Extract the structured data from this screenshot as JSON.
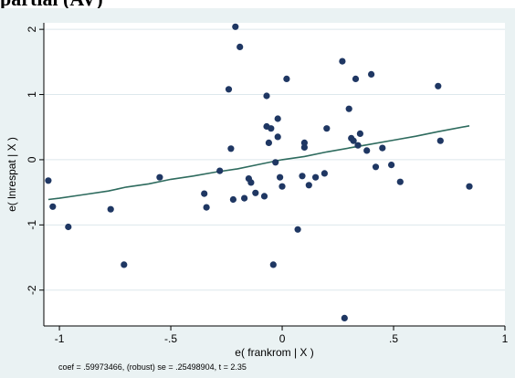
{
  "page": {
    "header_fragment": "partial (AV)"
  },
  "chart_data": {
    "type": "scatter",
    "title": "",
    "xlabel": "e( frankrom | X )",
    "ylabel": "e( lnrespat | X )",
    "xlim": [
      -1.07,
      1.0
    ],
    "ylim": [
      -2.55,
      2.1
    ],
    "xticks": [
      {
        "value": -1,
        "label": "-1"
      },
      {
        "value": -0.5,
        "label": "-.5"
      },
      {
        "value": 0,
        "label": "0"
      },
      {
        "value": 0.5,
        "label": ".5"
      },
      {
        "value": 1,
        "label": "1"
      }
    ],
    "yticks": [
      {
        "value": -2,
        "label": "-2"
      },
      {
        "value": -1,
        "label": "-1"
      },
      {
        "value": 0,
        "label": "0"
      },
      {
        "value": 1,
        "label": "1"
      },
      {
        "value": 2,
        "label": "2"
      }
    ],
    "grid": true,
    "note": "coef = .59973466, (robust) se = .25498904, t = 2.35",
    "colors": {
      "points": "#1f3763",
      "line": "#2e6b5e",
      "plot_bg": "#ffffff",
      "outer_bg": "#eaf2f3",
      "grid": "#dde8ec"
    },
    "points": [
      {
        "x": -1.05,
        "y": -0.32
      },
      {
        "x": -1.03,
        "y": -0.72
      },
      {
        "x": -0.96,
        "y": -1.03
      },
      {
        "x": -0.77,
        "y": -0.76
      },
      {
        "x": -0.71,
        "y": -1.61
      },
      {
        "x": -0.55,
        "y": -0.27
      },
      {
        "x": -0.35,
        "y": -0.52
      },
      {
        "x": -0.34,
        "y": -0.73
      },
      {
        "x": -0.28,
        "y": -0.17
      },
      {
        "x": -0.24,
        "y": 1.08
      },
      {
        "x": -0.23,
        "y": 0.17
      },
      {
        "x": -0.22,
        "y": -0.61
      },
      {
        "x": -0.21,
        "y": 2.04
      },
      {
        "x": -0.19,
        "y": 1.73
      },
      {
        "x": -0.17,
        "y": -0.59
      },
      {
        "x": -0.15,
        "y": -0.29
      },
      {
        "x": -0.14,
        "y": -0.35
      },
      {
        "x": -0.12,
        "y": -0.51
      },
      {
        "x": -0.08,
        "y": -0.56
      },
      {
        "x": -0.07,
        "y": 0.98
      },
      {
        "x": -0.07,
        "y": 0.51
      },
      {
        "x": -0.06,
        "y": 0.26
      },
      {
        "x": -0.05,
        "y": 0.48
      },
      {
        "x": -0.04,
        "y": -1.61
      },
      {
        "x": -0.03,
        "y": -0.04
      },
      {
        "x": -0.02,
        "y": 0.63
      },
      {
        "x": -0.02,
        "y": 0.35
      },
      {
        "x": -0.01,
        "y": -0.27
      },
      {
        "x": 0.0,
        "y": -0.41
      },
      {
        "x": 0.02,
        "y": 1.24
      },
      {
        "x": 0.07,
        "y": -1.07
      },
      {
        "x": 0.09,
        "y": -0.25
      },
      {
        "x": 0.1,
        "y": 0.19
      },
      {
        "x": 0.1,
        "y": 0.26
      },
      {
        "x": 0.12,
        "y": -0.39
      },
      {
        "x": 0.15,
        "y": -0.27
      },
      {
        "x": 0.19,
        "y": -0.21
      },
      {
        "x": 0.2,
        "y": 0.48
      },
      {
        "x": 0.27,
        "y": 1.51
      },
      {
        "x": 0.28,
        "y": -2.43
      },
      {
        "x": 0.3,
        "y": 0.78
      },
      {
        "x": 0.31,
        "y": 0.33
      },
      {
        "x": 0.32,
        "y": 0.29
      },
      {
        "x": 0.33,
        "y": 1.24
      },
      {
        "x": 0.34,
        "y": 0.22
      },
      {
        "x": 0.35,
        "y": 0.4
      },
      {
        "x": 0.38,
        "y": 0.14
      },
      {
        "x": 0.4,
        "y": 1.31
      },
      {
        "x": 0.42,
        "y": -0.11
      },
      {
        "x": 0.45,
        "y": 0.18
      },
      {
        "x": 0.49,
        "y": -0.08
      },
      {
        "x": 0.53,
        "y": -0.34
      },
      {
        "x": 0.7,
        "y": 1.13
      },
      {
        "x": 0.71,
        "y": 0.29
      },
      {
        "x": 0.84,
        "y": -0.41
      }
    ],
    "fit_line": [
      {
        "x": -1.05,
        "y": -0.61
      },
      {
        "x": -1.0,
        "y": -0.59
      },
      {
        "x": -0.9,
        "y": -0.54
      },
      {
        "x": -0.78,
        "y": -0.48
      },
      {
        "x": -0.7,
        "y": -0.42
      },
      {
        "x": -0.6,
        "y": -0.37
      },
      {
        "x": -0.5,
        "y": -0.3
      },
      {
        "x": -0.4,
        "y": -0.25
      },
      {
        "x": -0.3,
        "y": -0.19
      },
      {
        "x": -0.2,
        "y": -0.14
      },
      {
        "x": -0.1,
        "y": -0.07
      },
      {
        "x": 0.0,
        "y": 0.0
      },
      {
        "x": 0.1,
        "y": 0.05
      },
      {
        "x": 0.2,
        "y": 0.12
      },
      {
        "x": 0.3,
        "y": 0.18
      },
      {
        "x": 0.4,
        "y": 0.24
      },
      {
        "x": 0.5,
        "y": 0.3
      },
      {
        "x": 0.6,
        "y": 0.36
      },
      {
        "x": 0.7,
        "y": 0.43
      },
      {
        "x": 0.84,
        "y": 0.52
      }
    ]
  }
}
